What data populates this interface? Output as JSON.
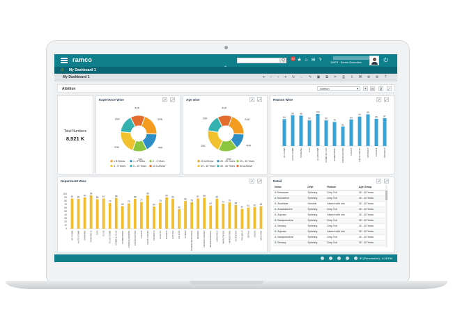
{
  "app": {
    "logo": "ramco",
    "user_role": "10678 - Senior Executive",
    "notification_count": "45",
    "search_button": "Q"
  },
  "nav": {
    "breadcrumb": "My Dashboard 1",
    "tab_title": "My Dashboard 1"
  },
  "filter": {
    "label": "Attrition",
    "selected": "Attrition"
  },
  "total": {
    "label": "Total Numbers",
    "value": "8,521 K"
  },
  "panels": {
    "experience": "Experience Wise",
    "age": "Age wise",
    "reason": "Reason Wise",
    "department": "Department Wise",
    "detail": "Detail"
  },
  "status": {
    "text": "IR (Personalize) : 4:28 PM"
  },
  "colors": {
    "header": "#0f7f8c",
    "bar_blue": "#3aa3d6",
    "bar_yellow": "#f2be2f",
    "slices": [
      "#f39c1f",
      "#2e8fc8",
      "#8cc63f",
      "#f2c12e",
      "#34b2b0",
      "#e36d2d"
    ]
  },
  "chart_data": [
    {
      "type": "pie",
      "title": "Experience Wise",
      "labels": [
        "1 B Below",
        "1 - 2 Years",
        "2 - 3 Years",
        "3 - 5 Years",
        "5 - 10 Years",
        "10 & Above"
      ],
      "values": [
        20,
        17,
        13,
        21,
        16,
        13
      ],
      "slice_labels": [
        "20K",
        "40K",
        "20K",
        "20K",
        "20K",
        "40K"
      ]
    },
    {
      "type": "pie",
      "title": "Age wise",
      "labels": [
        "20 & Below",
        "20 - 25 Years",
        "25 - 30 Years",
        "30 - 40 Years",
        "40 - 50 Years",
        "50 & Above"
      ],
      "values": [
        20,
        14,
        17,
        21,
        15,
        13
      ],
      "slice_labels": [
        "20K",
        "40K",
        "20K",
        "20K",
        "20K",
        "40K"
      ]
    },
    {
      "type": "bar",
      "title": "Reason Wise",
      "categories": [
        "AC COMB",
        "AUTO COMB",
        "BANKING",
        "CSR",
        "CLUB/COMB",
        "COMB & CLUB",
        "COMM BONK",
        "CONTRACTOR",
        "COUNT",
        "DEPT CONTR",
        "DISTRICT",
        "EXPORT",
        "PROJECT"
      ],
      "values": [
        84,
        96,
        95,
        80,
        100,
        80,
        75,
        61,
        83,
        92,
        99,
        85,
        87
      ],
      "ylim": [
        0,
        100
      ]
    },
    {
      "type": "bar",
      "title": "Department Wise",
      "categories": [
        "AC COMB",
        "AUTO COMB",
        "BANKING",
        "BANKING B",
        "CSR",
        "CLUB",
        "CLUB COMB",
        "COMB & CLUB",
        "COMM BONK",
        "CONFIGURATOR",
        "CONTRACTOR",
        "COUNT",
        "DEPT CONTR",
        "DISTRICT",
        "ELECTS",
        "EXPORT",
        "GST AIR",
        "GP GAS",
        "HUMAN",
        "HUMAN RESOURCE",
        "INDOOR",
        "INDOOR BRAND",
        "INTERNATIONAL",
        "LOGISTICS",
        "MAIN TRADE",
        "MARKETING",
        "OUTDOOR",
        "PROJECT",
        "RETAIL",
        "SALES",
        "MACHINE"
      ],
      "values": [
        87,
        86,
        90,
        96,
        85,
        87,
        74,
        88,
        65,
        73,
        86,
        77,
        96,
        64,
        75,
        90,
        86,
        56,
        80,
        76,
        87,
        89,
        67,
        86,
        72,
        76,
        68,
        57,
        61,
        62,
        65
      ],
      "ylim": [
        0,
        100
      ],
      "yticks": [
        0,
        10,
        20,
        30,
        40,
        50,
        60,
        70,
        80,
        90,
        100
      ]
    }
  ],
  "detail": {
    "columns": [
      "Name",
      "Dept",
      "Reason",
      "Age Group"
    ],
    "rows": [
      [
        "A Srinivasan",
        "Spinning",
        "Drop Out",
        "30 - 40 Years"
      ],
      [
        "A Tirumalesh",
        "Spinning",
        "Drop Out",
        "30 - 40 Years"
      ],
      [
        "A. Abubhkar",
        "General",
        "Absent with info",
        "30 - 40 Years"
      ],
      [
        "A. Anwalakshmi",
        "Spinning",
        "Drop Out",
        "30 - 40 Years"
      ],
      [
        "A. Arjunan",
        "Spinning",
        "Absent with info",
        "30 - 40 Years"
      ],
      [
        "A. Baraponolsha",
        "Spinning",
        "Drop Out",
        "30 - 40 Years"
      ],
      [
        "A. Benacy",
        "Spinning",
        "Drop Out",
        "30 - 40 Years"
      ],
      [
        "A. Arjunan",
        "Spinning",
        "Absent with info",
        "30 - 40 Years"
      ],
      [
        "A. Baraponolsha",
        "Spinning",
        "Drop Out",
        "30 - 40 Years"
      ],
      [
        "A. Benacy",
        "Spinning",
        "Drop Out",
        "30 - 40 Years"
      ]
    ]
  }
}
